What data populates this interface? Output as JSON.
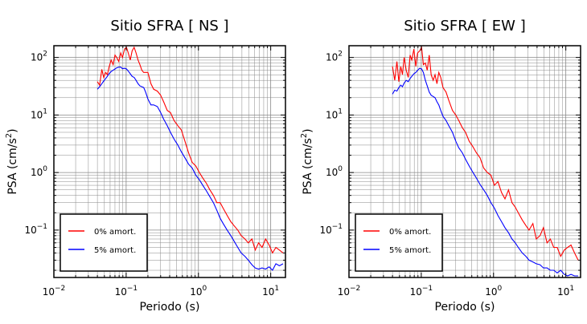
{
  "colors": {
    "undamped": "#ff0000",
    "damped5": "#0000ff",
    "grid": "#888888",
    "frame": "#000000"
  },
  "chart_data": [
    {
      "type": "line",
      "title": "Sitio SFRA [ NS ]",
      "xlabel": "Periodo (s)",
      "ylabel_main": "PSA (cm/s",
      "ylabel_sup": "2",
      "ylabel_close": ")",
      "xscale": "log",
      "yscale": "log",
      "xlim": [
        0.01,
        16
      ],
      "ylim": [
        0.015,
        160
      ],
      "grid": true,
      "legend_position": "bottom-left",
      "xticks": [
        {
          "base": "10",
          "exp": "−2",
          "v": 0.01
        },
        {
          "base": "10",
          "exp": "−1",
          "v": 0.1
        },
        {
          "base": "10",
          "exp": "0",
          "v": 1
        },
        {
          "base": "10",
          "exp": "1",
          "v": 10
        }
      ],
      "yticks": [
        {
          "base": "10",
          "exp": "−1",
          "v": 0.1
        },
        {
          "base": "10",
          "exp": "0",
          "v": 1
        },
        {
          "base": "10",
          "exp": "1",
          "v": 10
        },
        {
          "base": "10",
          "exp": "2",
          "v": 100
        }
      ],
      "series": [
        {
          "name": "0% amort.",
          "color": "#ff0000",
          "x": [
            0.04,
            0.043,
            0.046,
            0.049,
            0.052,
            0.055,
            0.058,
            0.062,
            0.066,
            0.07,
            0.074,
            0.079,
            0.084,
            0.089,
            0.095,
            0.101,
            0.107,
            0.114,
            0.121,
            0.129,
            0.137,
            0.146,
            0.155,
            0.165,
            0.175,
            0.186,
            0.2,
            0.22,
            0.24,
            0.27,
            0.3,
            0.33,
            0.37,
            0.41,
            0.46,
            0.52,
            0.58,
            0.65,
            0.73,
            0.82,
            0.92,
            1.03,
            1.15,
            1.29,
            1.44,
            1.61,
            1.8,
            2.0,
            2.2,
            2.5,
            2.8,
            3.1,
            3.5,
            3.9,
            4.4,
            4.9,
            5.5,
            6.1,
            6.8,
            7.6,
            8.5,
            9.5,
            10.6,
            11.8,
            13.2,
            14.8
          ],
          "y": [
            38,
            33,
            62,
            45,
            55,
            50,
            68,
            90,
            75,
            110,
            100,
            85,
            120,
            100,
            140,
            150,
            120,
            90,
            130,
            150,
            120,
            90,
            75,
            60,
            55,
            55,
            55,
            35,
            28,
            26,
            22,
            17,
            12,
            11,
            8,
            6.5,
            5.5,
            3.5,
            2.2,
            1.5,
            1.3,
            1.0,
            0.8,
            0.65,
            0.5,
            0.4,
            0.3,
            0.3,
            0.24,
            0.18,
            0.14,
            0.12,
            0.1,
            0.08,
            0.07,
            0.06,
            0.07,
            0.045,
            0.06,
            0.05,
            0.07,
            0.055,
            0.04,
            0.05,
            0.045,
            0.04
          ]
        },
        {
          "name": "5% amort.",
          "color": "#0000ff",
          "x": [
            0.04,
            0.043,
            0.046,
            0.049,
            0.052,
            0.055,
            0.058,
            0.062,
            0.066,
            0.07,
            0.074,
            0.079,
            0.084,
            0.089,
            0.095,
            0.101,
            0.107,
            0.114,
            0.121,
            0.129,
            0.137,
            0.146,
            0.155,
            0.165,
            0.175,
            0.186,
            0.2,
            0.22,
            0.24,
            0.27,
            0.3,
            0.33,
            0.37,
            0.41,
            0.46,
            0.52,
            0.58,
            0.65,
            0.73,
            0.82,
            0.92,
            1.03,
            1.15,
            1.29,
            1.44,
            1.61,
            1.8,
            2.0,
            2.2,
            2.5,
            2.8,
            3.1,
            3.5,
            3.9,
            4.4,
            4.9,
            5.5,
            6.1,
            6.8,
            7.6,
            8.5,
            9.5,
            10.6,
            11.8,
            13.2,
            14.8
          ],
          "y": [
            28,
            31,
            35,
            39,
            43,
            47,
            52,
            57,
            60,
            63,
            66,
            68,
            68,
            64,
            65,
            63,
            58,
            52,
            47,
            45,
            40,
            35,
            32,
            31,
            30,
            25,
            19,
            15,
            15,
            14,
            11,
            8.5,
            6.5,
            5.0,
            3.8,
            3.0,
            2.3,
            1.8,
            1.4,
            1.2,
            0.9,
            0.75,
            0.6,
            0.48,
            0.38,
            0.3,
            0.22,
            0.16,
            0.13,
            0.1,
            0.08,
            0.065,
            0.05,
            0.04,
            0.035,
            0.03,
            0.025,
            0.022,
            0.021,
            0.022,
            0.021,
            0.023,
            0.02,
            0.026,
            0.024,
            0.026
          ]
        }
      ]
    },
    {
      "type": "line",
      "title": "Sitio SFRA [ EW ]",
      "xlabel": "Periodo (s)",
      "ylabel_main": "PSA (cm/s",
      "ylabel_sup": "2",
      "ylabel_close": ")",
      "xscale": "log",
      "yscale": "log",
      "xlim": [
        0.01,
        16
      ],
      "ylim": [
        0.015,
        160
      ],
      "grid": true,
      "legend_position": "bottom-left",
      "xticks": [
        {
          "base": "10",
          "exp": "−2",
          "v": 0.01
        },
        {
          "base": "10",
          "exp": "−1",
          "v": 0.1
        },
        {
          "base": "10",
          "exp": "0",
          "v": 1
        },
        {
          "base": "10",
          "exp": "1",
          "v": 10
        }
      ],
      "yticks": [
        {
          "base": "10",
          "exp": "−1",
          "v": 0.1
        },
        {
          "base": "10",
          "exp": "0",
          "v": 1
        },
        {
          "base": "10",
          "exp": "1",
          "v": 10
        },
        {
          "base": "10",
          "exp": "2",
          "v": 100
        }
      ],
      "series": [
        {
          "name": "0% amort.",
          "color": "#ff0000",
          "x": [
            0.04,
            0.043,
            0.046,
            0.049,
            0.052,
            0.055,
            0.058,
            0.062,
            0.066,
            0.07,
            0.074,
            0.079,
            0.084,
            0.089,
            0.095,
            0.101,
            0.107,
            0.114,
            0.121,
            0.129,
            0.137,
            0.146,
            0.155,
            0.165,
            0.175,
            0.186,
            0.2,
            0.22,
            0.24,
            0.27,
            0.3,
            0.33,
            0.37,
            0.41,
            0.46,
            0.52,
            0.58,
            0.65,
            0.73,
            0.82,
            0.92,
            1.03,
            1.15,
            1.29,
            1.44,
            1.61,
            1.8,
            2.0,
            2.2,
            2.5,
            2.8,
            3.1,
            3.5,
            3.9,
            4.4,
            4.9,
            5.5,
            6.1,
            6.8,
            7.6,
            8.5,
            9.5,
            10.6,
            11.8,
            13.2,
            14.8
          ],
          "y": [
            70,
            40,
            85,
            38,
            70,
            50,
            100,
            60,
            45,
            110,
            90,
            140,
            70,
            120,
            130,
            150,
            75,
            80,
            60,
            110,
            50,
            40,
            50,
            35,
            55,
            45,
            30,
            25,
            18,
            12,
            10,
            8,
            6,
            5,
            3.5,
            2.8,
            2.2,
            1.8,
            1.2,
            1.0,
            0.9,
            0.6,
            0.7,
            0.45,
            0.35,
            0.5,
            0.3,
            0.25,
            0.2,
            0.15,
            0.12,
            0.1,
            0.13,
            0.07,
            0.08,
            0.11,
            0.06,
            0.07,
            0.05,
            0.05,
            0.035,
            0.045,
            0.05,
            0.055,
            0.04,
            0.03
          ]
        },
        {
          "name": "5% amort.",
          "color": "#0000ff",
          "x": [
            0.04,
            0.043,
            0.046,
            0.049,
            0.052,
            0.055,
            0.058,
            0.062,
            0.066,
            0.07,
            0.074,
            0.079,
            0.084,
            0.089,
            0.095,
            0.101,
            0.107,
            0.114,
            0.121,
            0.129,
            0.137,
            0.146,
            0.155,
            0.165,
            0.175,
            0.186,
            0.2,
            0.22,
            0.24,
            0.27,
            0.3,
            0.33,
            0.37,
            0.41,
            0.46,
            0.52,
            0.58,
            0.65,
            0.73,
            0.82,
            0.92,
            1.03,
            1.15,
            1.29,
            1.44,
            1.61,
            1.8,
            2.0,
            2.2,
            2.5,
            2.8,
            3.1,
            3.5,
            3.9,
            4.4,
            4.9,
            5.5,
            6.1,
            6.8,
            7.6,
            8.5,
            9.5,
            10.6,
            11.8,
            13.2,
            14.8
          ],
          "y": [
            23,
            27,
            26,
            30,
            33,
            31,
            36,
            40,
            38,
            43,
            47,
            52,
            55,
            60,
            65,
            63,
            55,
            40,
            32,
            25,
            22,
            21,
            20,
            17,
            15,
            12,
            9.5,
            8,
            6.5,
            5,
            3.5,
            2.7,
            2.2,
            1.7,
            1.3,
            1.0,
            0.8,
            0.62,
            0.5,
            0.4,
            0.3,
            0.24,
            0.18,
            0.14,
            0.11,
            0.09,
            0.07,
            0.06,
            0.05,
            0.04,
            0.035,
            0.03,
            0.028,
            0.026,
            0.025,
            0.022,
            0.022,
            0.02,
            0.02,
            0.018,
            0.02,
            0.017,
            0.016,
            0.017,
            0.016,
            0.016
          ]
        }
      ]
    }
  ]
}
